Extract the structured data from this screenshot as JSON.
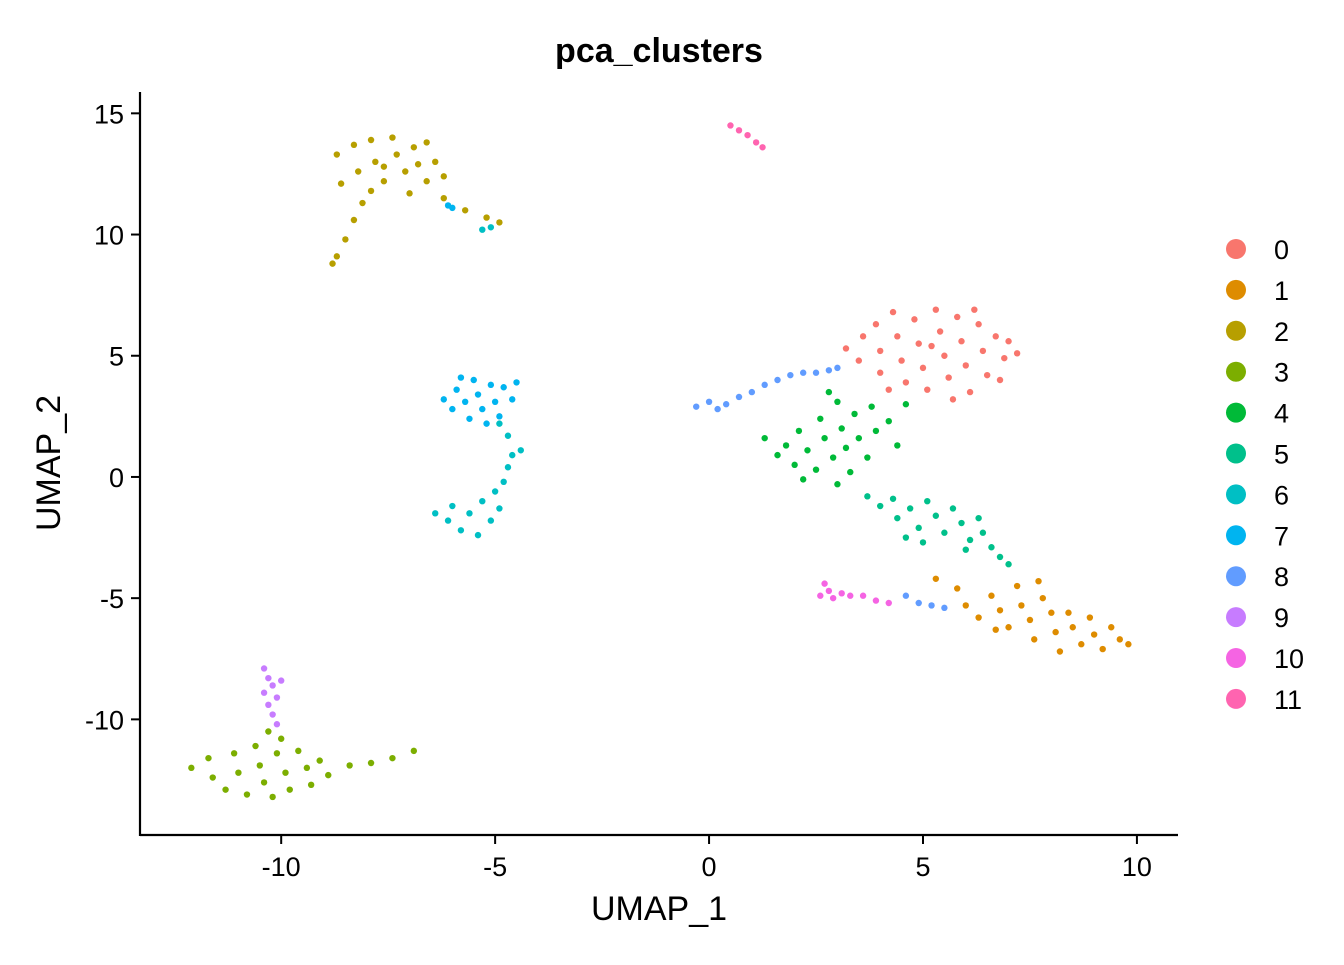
{
  "chart_data": {
    "type": "scatter",
    "title": "pca_clusters",
    "xlabel": "UMAP_1",
    "ylabel": "UMAP_2",
    "xlim": [
      -13.3,
      10.96
    ],
    "ylim": [
      -14.77,
      15.88
    ],
    "xticks": [
      -10,
      -5,
      0,
      5,
      10
    ],
    "yticks": [
      15,
      10,
      5,
      0,
      -5,
      -10
    ],
    "grid": false,
    "legend_position": "right",
    "series": [
      {
        "name": "0",
        "color": "#F8766D",
        "points": [
          [
            3.2,
            5.3
          ],
          [
            3.5,
            4.8
          ],
          [
            3.6,
            5.8
          ],
          [
            3.9,
            6.3
          ],
          [
            4.0,
            5.2
          ],
          [
            4.0,
            4.3
          ],
          [
            4.3,
            6.8
          ],
          [
            4.4,
            5.8
          ],
          [
            4.5,
            4.8
          ],
          [
            4.6,
            3.9
          ],
          [
            4.8,
            6.5
          ],
          [
            4.9,
            5.5
          ],
          [
            5.0,
            4.5
          ],
          [
            5.1,
            3.6
          ],
          [
            5.3,
            6.9
          ],
          [
            5.4,
            6.0
          ],
          [
            5.5,
            5.0
          ],
          [
            5.6,
            4.1
          ],
          [
            5.8,
            6.6
          ],
          [
            5.9,
            5.6
          ],
          [
            6.0,
            4.6
          ],
          [
            6.1,
            3.5
          ],
          [
            6.3,
            6.3
          ],
          [
            6.4,
            5.2
          ],
          [
            6.5,
            4.2
          ],
          [
            6.7,
            5.8
          ],
          [
            6.9,
            4.9
          ],
          [
            7.0,
            5.6
          ],
          [
            7.2,
            5.1
          ],
          [
            6.8,
            4.0
          ],
          [
            5.2,
            5.4
          ],
          [
            4.2,
            3.6
          ],
          [
            5.7,
            3.2
          ],
          [
            6.2,
            6.9
          ]
        ]
      },
      {
        "name": "1",
        "color": "#DE8C00",
        "points": [
          [
            5.3,
            -4.2
          ],
          [
            5.8,
            -4.6
          ],
          [
            6.0,
            -5.3
          ],
          [
            6.3,
            -5.8
          ],
          [
            6.6,
            -4.9
          ],
          [
            6.8,
            -5.5
          ],
          [
            7.0,
            -6.2
          ],
          [
            7.2,
            -4.5
          ],
          [
            7.3,
            -5.3
          ],
          [
            7.5,
            -5.9
          ],
          [
            7.6,
            -6.7
          ],
          [
            7.8,
            -5.0
          ],
          [
            8.0,
            -5.6
          ],
          [
            8.1,
            -6.4
          ],
          [
            8.2,
            -7.2
          ],
          [
            8.4,
            -5.6
          ],
          [
            8.5,
            -6.2
          ],
          [
            8.7,
            -6.9
          ],
          [
            8.9,
            -5.8
          ],
          [
            9.0,
            -6.5
          ],
          [
            9.2,
            -7.1
          ],
          [
            9.4,
            -6.2
          ],
          [
            9.6,
            -6.7
          ],
          [
            9.8,
            -6.9
          ],
          [
            7.7,
            -4.3
          ],
          [
            6.7,
            -6.3
          ]
        ]
      },
      {
        "name": "2",
        "color": "#B79F00",
        "points": [
          [
            -8.7,
            13.3
          ],
          [
            -8.3,
            13.7
          ],
          [
            -8.2,
            12.6
          ],
          [
            -7.9,
            13.9
          ],
          [
            -7.8,
            13.0
          ],
          [
            -7.6,
            12.2
          ],
          [
            -7.4,
            14.0
          ],
          [
            -7.3,
            13.3
          ],
          [
            -7.1,
            12.6
          ],
          [
            -6.9,
            13.6
          ],
          [
            -6.8,
            12.9
          ],
          [
            -6.6,
            12.2
          ],
          [
            -6.4,
            13.0
          ],
          [
            -6.2,
            12.4
          ],
          [
            -7.9,
            11.8
          ],
          [
            -7.0,
            11.7
          ],
          [
            -8.1,
            11.3
          ],
          [
            -8.3,
            10.6
          ],
          [
            -8.5,
            9.8
          ],
          [
            -8.7,
            9.1
          ],
          [
            -8.8,
            8.8
          ],
          [
            -6.2,
            11.5
          ],
          [
            -5.7,
            11.0
          ],
          [
            -5.2,
            10.7
          ],
          [
            -4.9,
            10.5
          ],
          [
            -8.6,
            12.1
          ],
          [
            -7.6,
            12.8
          ],
          [
            -6.6,
            13.8
          ]
        ]
      },
      {
        "name": "3",
        "color": "#7CAE00",
        "points": [
          [
            -12.1,
            -12.0
          ],
          [
            -11.7,
            -11.6
          ],
          [
            -11.6,
            -12.4
          ],
          [
            -11.3,
            -12.9
          ],
          [
            -11.1,
            -11.4
          ],
          [
            -11.0,
            -12.2
          ],
          [
            -10.8,
            -13.1
          ],
          [
            -10.6,
            -11.1
          ],
          [
            -10.5,
            -11.9
          ],
          [
            -10.4,
            -12.6
          ],
          [
            -10.2,
            -13.2
          ],
          [
            -10.1,
            -11.4
          ],
          [
            -9.9,
            -12.2
          ],
          [
            -9.8,
            -12.9
          ],
          [
            -9.6,
            -11.3
          ],
          [
            -9.4,
            -12.0
          ],
          [
            -9.3,
            -12.7
          ],
          [
            -9.1,
            -11.7
          ],
          [
            -8.9,
            -12.3
          ],
          [
            -10.3,
            -10.5
          ],
          [
            -10.0,
            -10.8
          ],
          [
            -8.4,
            -11.9
          ],
          [
            -7.9,
            -11.8
          ],
          [
            -7.4,
            -11.6
          ],
          [
            -6.9,
            -11.3
          ]
        ]
      },
      {
        "name": "4",
        "color": "#00BA38",
        "points": [
          [
            1.3,
            1.6
          ],
          [
            1.6,
            0.9
          ],
          [
            1.8,
            1.3
          ],
          [
            2.0,
            0.5
          ],
          [
            2.1,
            1.9
          ],
          [
            2.3,
            1.1
          ],
          [
            2.5,
            0.3
          ],
          [
            2.6,
            2.4
          ],
          [
            2.7,
            1.6
          ],
          [
            2.9,
            0.8
          ],
          [
            3.0,
            3.1
          ],
          [
            3.1,
            2.0
          ],
          [
            3.2,
            1.2
          ],
          [
            3.3,
            0.2
          ],
          [
            3.4,
            2.6
          ],
          [
            3.5,
            1.6
          ],
          [
            3.7,
            0.8
          ],
          [
            3.8,
            2.9
          ],
          [
            3.9,
            1.9
          ],
          [
            4.2,
            2.3
          ],
          [
            4.4,
            1.3
          ],
          [
            4.6,
            3.0
          ],
          [
            3.0,
            -0.3
          ],
          [
            2.8,
            3.5
          ],
          [
            2.2,
            -0.1
          ]
        ]
      },
      {
        "name": "5",
        "color": "#00C08B",
        "points": [
          [
            3.7,
            -0.8
          ],
          [
            4.0,
            -1.2
          ],
          [
            4.3,
            -0.9
          ],
          [
            4.4,
            -1.7
          ],
          [
            4.7,
            -1.3
          ],
          [
            4.9,
            -2.1
          ],
          [
            5.1,
            -1.0
          ],
          [
            5.3,
            -1.6
          ],
          [
            5.5,
            -2.3
          ],
          [
            5.7,
            -1.3
          ],
          [
            5.9,
            -1.9
          ],
          [
            6.1,
            -2.6
          ],
          [
            6.3,
            -1.7
          ],
          [
            6.4,
            -2.3
          ],
          [
            6.6,
            -2.9
          ],
          [
            6.8,
            -3.3
          ],
          [
            7.0,
            -3.6
          ],
          [
            5.0,
            -2.7
          ],
          [
            4.6,
            -2.5
          ],
          [
            6.0,
            -3.0
          ]
        ]
      },
      {
        "name": "6",
        "color": "#00BFC4",
        "points": [
          [
            -6.4,
            -1.5
          ],
          [
            -6.1,
            -1.8
          ],
          [
            -6.0,
            -1.2
          ],
          [
            -5.8,
            -2.2
          ],
          [
            -5.6,
            -1.5
          ],
          [
            -5.4,
            -2.4
          ],
          [
            -5.3,
            -1.0
          ],
          [
            -5.1,
            -1.8
          ],
          [
            -5.0,
            -0.6
          ],
          [
            -4.9,
            -1.3
          ],
          [
            -4.8,
            -0.2
          ],
          [
            -4.7,
            0.4
          ],
          [
            -4.6,
            0.9
          ],
          [
            -4.4,
            1.1
          ],
          [
            -4.7,
            1.7
          ],
          [
            -4.9,
            2.2
          ],
          [
            -5.3,
            10.2
          ],
          [
            -5.1,
            10.3
          ]
        ]
      },
      {
        "name": "7",
        "color": "#00B4F0",
        "points": [
          [
            -6.2,
            3.2
          ],
          [
            -6.0,
            2.8
          ],
          [
            -5.9,
            3.6
          ],
          [
            -5.7,
            3.1
          ],
          [
            -5.6,
            2.4
          ],
          [
            -5.5,
            4.0
          ],
          [
            -5.4,
            3.4
          ],
          [
            -5.3,
            2.8
          ],
          [
            -5.1,
            3.8
          ],
          [
            -5.0,
            3.1
          ],
          [
            -4.9,
            2.5
          ],
          [
            -4.8,
            3.7
          ],
          [
            -4.6,
            3.2
          ],
          [
            -4.5,
            3.9
          ],
          [
            -5.8,
            4.1
          ],
          [
            -5.2,
            2.2
          ],
          [
            -6.1,
            11.2
          ],
          [
            -6.0,
            11.1
          ]
        ]
      },
      {
        "name": "8",
        "color": "#619CFF",
        "points": [
          [
            -0.3,
            2.9
          ],
          [
            0.0,
            3.1
          ],
          [
            0.2,
            2.8
          ],
          [
            0.4,
            3.0
          ],
          [
            0.7,
            3.3
          ],
          [
            1.0,
            3.5
          ],
          [
            1.3,
            3.8
          ],
          [
            1.6,
            4.0
          ],
          [
            1.9,
            4.2
          ],
          [
            2.2,
            4.3
          ],
          [
            2.5,
            4.3
          ],
          [
            2.8,
            4.4
          ],
          [
            3.0,
            4.5
          ],
          [
            4.6,
            -4.9
          ],
          [
            4.9,
            -5.2
          ],
          [
            5.2,
            -5.3
          ],
          [
            5.5,
            -5.4
          ]
        ]
      },
      {
        "name": "9",
        "color": "#C77CFF",
        "points": [
          [
            -10.4,
            -7.9
          ],
          [
            -10.3,
            -8.3
          ],
          [
            -10.2,
            -8.6
          ],
          [
            -10.4,
            -8.9
          ],
          [
            -10.1,
            -9.1
          ],
          [
            -10.3,
            -9.4
          ],
          [
            -10.0,
            -8.4
          ],
          [
            -10.2,
            -9.8
          ],
          [
            -10.1,
            -10.2
          ]
        ]
      },
      {
        "name": "10",
        "color": "#F564E3",
        "points": [
          [
            2.6,
            -4.9
          ],
          [
            2.8,
            -4.7
          ],
          [
            2.9,
            -5.0
          ],
          [
            3.1,
            -4.8
          ],
          [
            3.3,
            -4.9
          ],
          [
            3.6,
            -4.9
          ],
          [
            3.9,
            -5.1
          ],
          [
            4.2,
            -5.2
          ],
          [
            2.7,
            -4.4
          ]
        ]
      },
      {
        "name": "11",
        "color": "#FF64B0",
        "points": [
          [
            0.5,
            14.5
          ],
          [
            0.7,
            14.3
          ],
          [
            0.9,
            14.1
          ],
          [
            1.1,
            13.8
          ],
          [
            1.25,
            13.6
          ]
        ]
      }
    ]
  }
}
